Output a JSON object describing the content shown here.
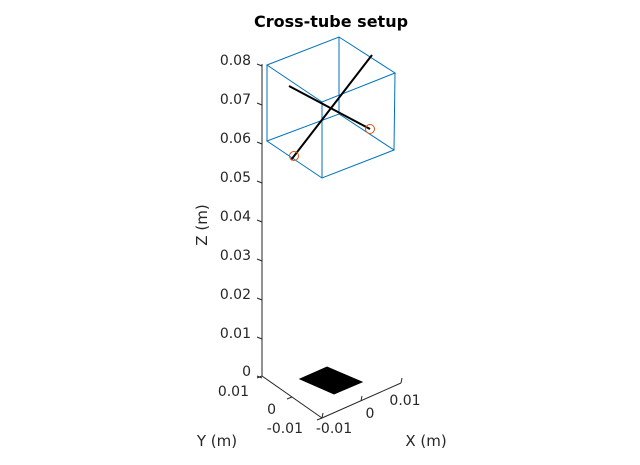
{
  "title": "Cross-tube setup",
  "axes": {
    "x_label": "X (m)",
    "y_label": "Y (m)",
    "z_label": "Z (m)",
    "x_ticks": [
      "-0.01",
      "0",
      "0.01"
    ],
    "y_ticks": [
      "-0.01",
      "0",
      "0.01"
    ],
    "z_ticks": [
      "0",
      "0.01",
      "0.02",
      "0.03",
      "0.04",
      "0.05",
      "0.06",
      "0.07",
      "0.08"
    ]
  },
  "colors": {
    "axis": "#262626",
    "box": "#0072BD",
    "tube": "#000000",
    "marker": "#D95319",
    "base": "#000000"
  }
}
